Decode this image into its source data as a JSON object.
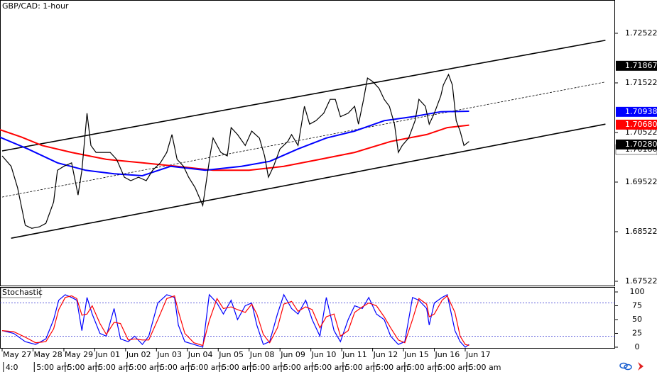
{
  "chart_data": {
    "type": "line",
    "title": "GBP/CAD: 1-hour",
    "x": [
      0,
      7,
      12,
      18,
      23,
      29,
      34,
      40,
      43,
      48,
      54,
      59,
      62,
      66,
      69,
      73,
      78,
      84,
      89,
      95,
      100,
      106,
      112,
      117,
      123,
      128,
      132,
      136,
      141,
      145,
      150,
      156,
      158,
      162,
      164,
      170,
      175,
      178,
      183,
      189,
      194,
      200,
      204,
      207,
      211,
      216,
      222,
      225,
      230,
      235,
      239,
      244,
      250,
      255,
      259,
      263,
      269,
      274,
      277,
      281,
      284,
      288,
      293,
      297,
      301,
      305,
      308,
      311,
      316,
      321,
      324,
      329,
      332,
      336,
      341,
      343,
      347,
      350,
      353,
      356,
      359,
      363
    ],
    "values": [
      1.7005,
      1.6984,
      1.6941,
      1.6865,
      1.6859,
      1.6862,
      1.6869,
      1.6912,
      1.6976,
      1.6984,
      1.6991,
      1.6926,
      1.6976,
      1.7091,
      1.7026,
      1.7012,
      1.7012,
      1.7012,
      1.6998,
      1.6962,
      1.6955,
      1.6962,
      1.6955,
      1.6976,
      1.6991,
      1.7012,
      1.7048,
      1.6998,
      1.6984,
      1.6962,
      1.6941,
      1.6905,
      1.6941,
      1.7012,
      1.7041,
      1.7012,
      1.7005,
      1.7062,
      1.7048,
      1.7026,
      1.7055,
      1.7041,
      1.7005,
      1.6962,
      1.6984,
      1.7019,
      1.7034,
      1.7048,
      1.7026,
      1.7105,
      1.7069,
      1.7076,
      1.7091,
      1.7119,
      1.7119,
      1.7084,
      1.7091,
      1.7105,
      1.7069,
      1.7119,
      1.7162,
      1.7155,
      1.7141,
      1.7119,
      1.7105,
      1.7069,
      1.7012,
      1.7026,
      1.7041,
      1.7076,
      1.7119,
      1.7105,
      1.7069,
      1.7091,
      1.7126,
      1.7148,
      1.7169,
      1.7148,
      1.7076,
      1.7055,
      1.7026,
      1.7034
    ],
    "color": "#000000",
    "moving_averages": [
      {
        "color": "#ff0000",
        "x": [
          -2,
          15,
          31,
          54,
          81,
          109,
          136,
          164,
          192,
          219,
          247,
          274,
          302,
          330,
          346,
          363
        ],
        "values": [
          1.7058,
          1.7043,
          1.7026,
          1.7012,
          1.6998,
          1.6991,
          1.6984,
          1.6976,
          1.6976,
          1.6984,
          1.6998,
          1.7012,
          1.7034,
          1.7048,
          1.7062,
          1.7067
        ]
      },
      {
        "color": "#0000ff",
        "x": [
          -2,
          20,
          43,
          65,
          87,
          109,
          131,
          158,
          186,
          208,
          230,
          252,
          274,
          297,
          319,
          341,
          363
        ],
        "values": [
          1.7043,
          1.7019,
          1.6991,
          1.6976,
          1.6969,
          1.6965,
          1.6984,
          1.6976,
          1.6984,
          1.6994,
          1.7019,
          1.7041,
          1.7055,
          1.7076,
          1.7084,
          1.7094,
          1.7095
        ]
      }
    ],
    "trendlines": [
      {
        "x": [
          0,
          469
        ],
        "values": [
          1.7015,
          1.7238
        ],
        "dashed": false
      },
      {
        "x": [
          7,
          469
        ],
        "values": [
          1.6839,
          1.7069
        ],
        "dashed": false
      },
      {
        "x": [
          0,
          469
        ],
        "values": [
          1.6922,
          1.7154
        ],
        "dashed": true
      }
    ],
    "xlim": [
      -1.66,
      476.5
    ],
    "ylim": [
      1.67436,
      1.73193
    ],
    "yticks": [
      1.67522,
      1.68522,
      1.69522,
      1.70522,
      1.71522,
      1.72522
    ],
    "price_markers": [
      {
        "value": 1.7018,
        "label": "1.70180",
        "color": "#ffffff"
      },
      {
        "value": 1.71867,
        "color": "#000000"
      },
      {
        "value": 1.70938,
        "color": "#0000ff"
      },
      {
        "value": 1.7068,
        "label": "1.70680",
        "color": "#ff0000"
      },
      {
        "value": 1.7028,
        "label": "1.70280",
        "color": "#000000"
      }
    ],
    "xticks": [
      {
        "value": 0,
        "label": "May 27"
      },
      {
        "value": 24,
        "label": "May 28"
      },
      {
        "value": 48,
        "label": "May 29"
      },
      {
        "value": 72,
        "label": "Jun 01"
      },
      {
        "value": 96,
        "label": "Jun 02"
      },
      {
        "value": 120,
        "label": "Jun 03"
      },
      {
        "value": 144,
        "label": "Jun 04"
      },
      {
        "value": 168,
        "label": "Jun 05"
      },
      {
        "value": 192,
        "label": "Jun 08"
      },
      {
        "value": 216,
        "label": "Jun 09"
      },
      {
        "value": 240,
        "label": "Jun 10"
      },
      {
        "value": 264,
        "label": "Jun 11"
      },
      {
        "value": 288,
        "label": "Jun 12"
      },
      {
        "value": 312,
        "label": "Jun 15"
      },
      {
        "value": 336,
        "label": "Jun 16"
      },
      {
        "value": 360,
        "label": "Jun 17"
      }
    ],
    "xticks2": [
      {
        "value": 1,
        "label": "4:0"
      },
      {
        "value": 25,
        "label": "5:00 am"
      },
      {
        "value": 49,
        "label": "5:00 am"
      },
      {
        "value": 73,
        "label": "5:00 am"
      },
      {
        "value": 97,
        "label": "5:00 am"
      },
      {
        "value": 121,
        "label": "5:00 am"
      },
      {
        "value": 145,
        "label": "5:00 am"
      },
      {
        "value": 169,
        "label": "5:00 am"
      },
      {
        "value": 193,
        "label": "5:00 am"
      },
      {
        "value": 217,
        "label": "5:00 am"
      },
      {
        "value": 241,
        "label": "5:00 am"
      },
      {
        "value": 265,
        "label": "5:00 am"
      },
      {
        "value": 289,
        "label": "5:00 am"
      },
      {
        "value": 313,
        "label": "5:00 am"
      },
      {
        "value": 337,
        "label": "5:00 am"
      },
      {
        "value": 361,
        "label": "5:00 am"
      }
    ],
    "stochastic": {
      "label": "Stochastic",
      "x": [
        0,
        9,
        18,
        26,
        34,
        40,
        44,
        49,
        54,
        58,
        62,
        66,
        70,
        76,
        81,
        87,
        92,
        98,
        103,
        109,
        114,
        121,
        128,
        134,
        137,
        142,
        149,
        156,
        161,
        167,
        172,
        178,
        183,
        189,
        194,
        198,
        203,
        208,
        214,
        219,
        225,
        230,
        236,
        241,
        247,
        252,
        258,
        263,
        269,
        274,
        280,
        285,
        291,
        297,
        302,
        308,
        313,
        319,
        324,
        330,
        332,
        336,
        342,
        346,
        352,
        356,
        360,
        363
      ],
      "series": [
        {
          "color": "#0000ff",
          "values": [
            30,
            25,
            10,
            5,
            15,
            50,
            85,
            95,
            90,
            85,
            30,
            90,
            60,
            25,
            20,
            70,
            15,
            10,
            20,
            5,
            20,
            80,
            95,
            90,
            40,
            10,
            5,
            0,
            95,
            80,
            60,
            85,
            50,
            75,
            80,
            40,
            5,
            10,
            60,
            95,
            70,
            60,
            85,
            50,
            20,
            90,
            30,
            10,
            50,
            75,
            70,
            90,
            60,
            50,
            20,
            5,
            10,
            90,
            85,
            70,
            40,
            80,
            90,
            95,
            30,
            10,
            0,
            5
          ]
        },
        {
          "color": "#ff0000",
          "values": [
            30,
            28,
            18,
            8,
            10,
            33,
            68,
            90,
            93,
            88,
            58,
            60,
            75,
            43,
            23,
            45,
            43,
            13,
            15,
            13,
            13,
            50,
            88,
            93,
            65,
            25,
            8,
            3,
            48,
            88,
            70,
            73,
            68,
            63,
            78,
            60,
            23,
            8,
            35,
            78,
            83,
            65,
            73,
            68,
            35,
            55,
            60,
            20,
            30,
            63,
            73,
            80,
            75,
            55,
            35,
            13,
            8,
            50,
            88,
            78,
            55,
            60,
            85,
            93,
            63,
            20,
            5,
            3
          ]
        }
      ],
      "ylim": [
        -2.6,
        109
      ],
      "yticks": [
        0,
        25,
        50,
        75,
        100
      ],
      "levels": [
        20,
        80
      ]
    }
  }
}
